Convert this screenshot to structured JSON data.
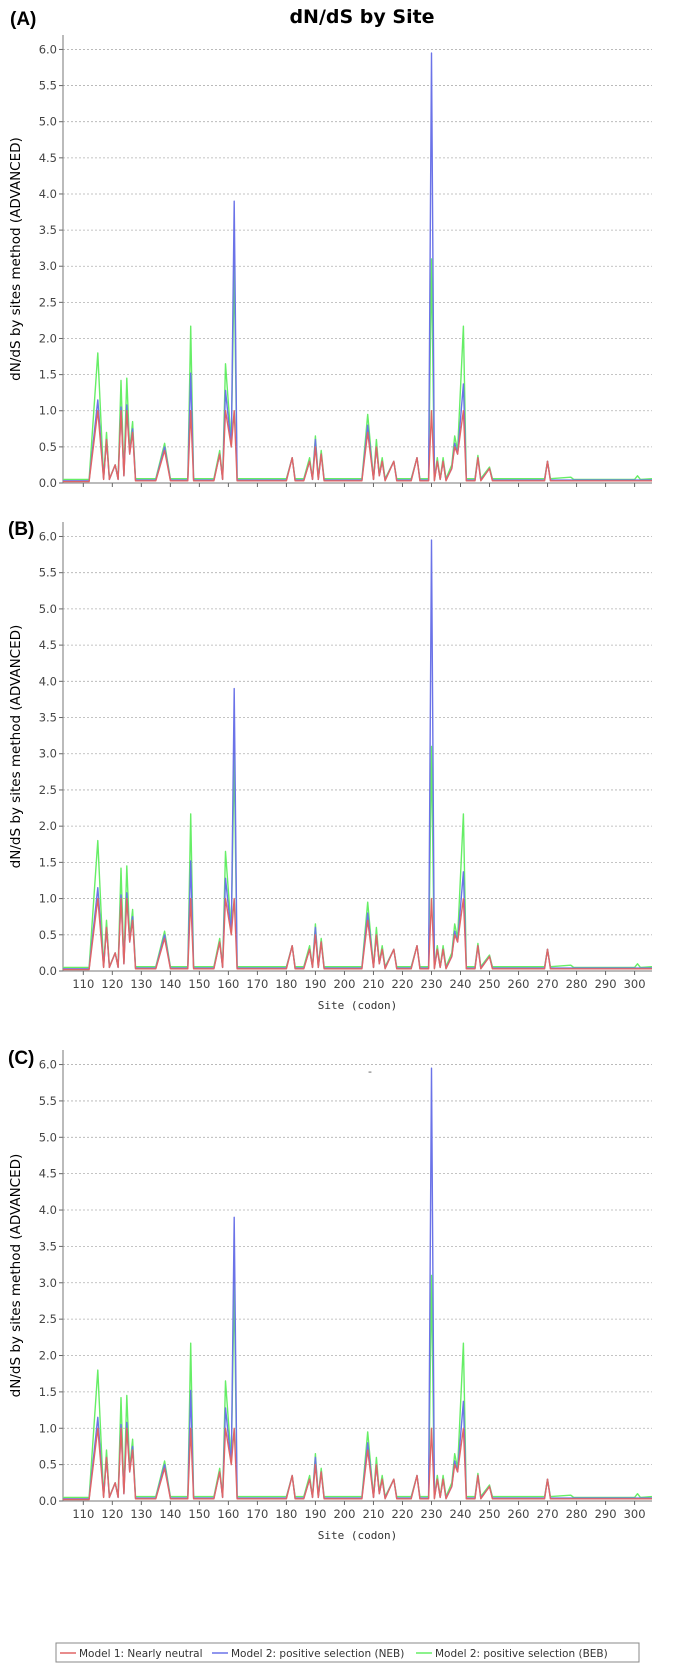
{
  "title": "dN/dS by Site",
  "dash_mark": "-",
  "legend": [
    {
      "label": "Model 1: Nearly neutral",
      "color": "#e06666"
    },
    {
      "label": "Model 2: positive selection (NEB)",
      "color": "#6b73e8"
    },
    {
      "label": "Model 2: positive selection (BEB)",
      "color": "#66ee66"
    }
  ],
  "chart_data": [
    {
      "type": "line",
      "panel_label": "(A)",
      "ylabel": "dN/dS by sites method (ADVANCED)",
      "xlabel": "",
      "show_x_tick_labels": false,
      "ylim": [
        0,
        6.2
      ],
      "xlim": [
        103,
        306
      ],
      "y_ticks": [
        "0.0",
        "0.5",
        "1.0",
        "1.5",
        "2.0",
        "2.5",
        "3.0",
        "3.5",
        "4.0",
        "4.5",
        "5.0",
        "5.5",
        "6.0"
      ],
      "x_ticks": [
        "110",
        "120",
        "130",
        "140",
        "150",
        "160",
        "170",
        "180",
        "190",
        "200",
        "210",
        "220",
        "230",
        "240",
        "250",
        "260",
        "270",
        "280",
        "290",
        "300"
      ],
      "grid": "horizontal-dashed",
      "series": [
        {
          "name": "Model 1: Nearly neutral",
          "color": "#e06666",
          "points": [
            [
              103,
              0.02
            ],
            [
              112,
              0.02
            ],
            [
              115,
              1.0
            ],
            [
              117,
              0.05
            ],
            [
              118,
              0.6
            ],
            [
              119,
              0.05
            ],
            [
              121,
              0.25
            ],
            [
              122,
              0.05
            ],
            [
              123,
              1.0
            ],
            [
              124,
              0.1
            ],
            [
              125,
              1.0
            ],
            [
              126,
              0.4
            ],
            [
              127,
              0.7
            ],
            [
              128,
              0.03
            ],
            [
              135,
              0.03
            ],
            [
              138,
              0.45
            ],
            [
              140,
              0.03
            ],
            [
              146,
              0.03
            ],
            [
              147,
              1.0
            ],
            [
              148,
              0.03
            ],
            [
              155,
              0.03
            ],
            [
              157,
              0.4
            ],
            [
              158,
              0.05
            ],
            [
              159,
              1.0
            ],
            [
              161,
              0.5
            ],
            [
              162,
              1.0
            ],
            [
              163,
              0.03
            ],
            [
              180,
              0.03
            ],
            [
              182,
              0.35
            ],
            [
              183,
              0.03
            ],
            [
              186,
              0.03
            ],
            [
              188,
              0.3
            ],
            [
              189,
              0.05
            ],
            [
              190,
              0.5
            ],
            [
              191,
              0.05
            ],
            [
              192,
              0.4
            ],
            [
              193,
              0.03
            ],
            [
              206,
              0.03
            ],
            [
              208,
              0.7
            ],
            [
              210,
              0.05
            ],
            [
              211,
              0.5
            ],
            [
              212,
              0.1
            ],
            [
              213,
              0.3
            ],
            [
              214,
              0.03
            ],
            [
              217,
              0.3
            ],
            [
              218,
              0.03
            ],
            [
              223,
              0.03
            ],
            [
              225,
              0.35
            ],
            [
              226,
              0.03
            ],
            [
              229,
              0.03
            ],
            [
              230,
              1.0
            ],
            [
              231,
              0.03
            ],
            [
              232,
              0.3
            ],
            [
              233,
              0.05
            ],
            [
              234,
              0.3
            ],
            [
              235,
              0.03
            ],
            [
              237,
              0.2
            ],
            [
              238,
              0.5
            ],
            [
              239,
              0.4
            ],
            [
              241,
              1.0
            ],
            [
              242,
              0.03
            ],
            [
              245,
              0.03
            ],
            [
              246,
              0.35
            ],
            [
              247,
              0.03
            ],
            [
              250,
              0.2
            ],
            [
              251,
              0.03
            ],
            [
              269,
              0.03
            ],
            [
              270,
              0.3
            ],
            [
              271,
              0.03
            ],
            [
              306,
              0.03
            ]
          ]
        },
        {
          "name": "Model 2: positive selection (NEB)",
          "color": "#6b73e8",
          "points": [
            [
              103,
              0.03
            ],
            [
              112,
              0.03
            ],
            [
              115,
              1.15
            ],
            [
              117,
              0.06
            ],
            [
              118,
              0.6
            ],
            [
              119,
              0.05
            ],
            [
              121,
              0.25
            ],
            [
              122,
              0.05
            ],
            [
              123,
              1.05
            ],
            [
              124,
              0.1
            ],
            [
              125,
              1.08
            ],
            [
              126,
              0.4
            ],
            [
              127,
              0.75
            ],
            [
              128,
              0.04
            ],
            [
              135,
              0.04
            ],
            [
              138,
              0.5
            ],
            [
              140,
              0.04
            ],
            [
              146,
              0.04
            ],
            [
              147,
              1.52
            ],
            [
              148,
              0.04
            ],
            [
              155,
              0.04
            ],
            [
              157,
              0.4
            ],
            [
              158,
              0.05
            ],
            [
              159,
              1.28
            ],
            [
              161,
              0.5
            ],
            [
              162,
              3.9
            ],
            [
              163,
              0.04
            ],
            [
              180,
              0.04
            ],
            [
              182,
              0.35
            ],
            [
              183,
              0.04
            ],
            [
              186,
              0.04
            ],
            [
              188,
              0.3
            ],
            [
              189,
              0.05
            ],
            [
              190,
              0.6
            ],
            [
              191,
              0.05
            ],
            [
              192,
              0.4
            ],
            [
              193,
              0.04
            ],
            [
              206,
              0.04
            ],
            [
              208,
              0.8
            ],
            [
              210,
              0.05
            ],
            [
              211,
              0.5
            ],
            [
              212,
              0.1
            ],
            [
              213,
              0.3
            ],
            [
              214,
              0.04
            ],
            [
              217,
              0.3
            ],
            [
              218,
              0.04
            ],
            [
              223,
              0.04
            ],
            [
              225,
              0.35
            ],
            [
              226,
              0.04
            ],
            [
              229,
              0.04
            ],
            [
              230,
              5.95
            ],
            [
              231,
              0.04
            ],
            [
              232,
              0.3
            ],
            [
              233,
              0.05
            ],
            [
              234,
              0.3
            ],
            [
              235,
              0.04
            ],
            [
              237,
              0.2
            ],
            [
              238,
              0.55
            ],
            [
              239,
              0.4
            ],
            [
              241,
              1.37
            ],
            [
              242,
              0.04
            ],
            [
              245,
              0.04
            ],
            [
              246,
              0.35
            ],
            [
              247,
              0.04
            ],
            [
              250,
              0.2
            ],
            [
              251,
              0.04
            ],
            [
              269,
              0.04
            ],
            [
              270,
              0.3
            ],
            [
              271,
              0.04
            ],
            [
              306,
              0.04
            ]
          ]
        },
        {
          "name": "Model 2: positive selection (BEB)",
          "color": "#66ee66",
          "points": [
            [
              103,
              0.05
            ],
            [
              112,
              0.05
            ],
            [
              115,
              1.8
            ],
            [
              117,
              0.07
            ],
            [
              118,
              0.7
            ],
            [
              119,
              0.06
            ],
            [
              121,
              0.25
            ],
            [
              122,
              0.06
            ],
            [
              123,
              1.42
            ],
            [
              124,
              0.12
            ],
            [
              125,
              1.45
            ],
            [
              126,
              0.45
            ],
            [
              127,
              0.85
            ],
            [
              128,
              0.06
            ],
            [
              135,
              0.06
            ],
            [
              138,
              0.55
            ],
            [
              140,
              0.06
            ],
            [
              146,
              0.06
            ],
            [
              147,
              2.17
            ],
            [
              148,
              0.06
            ],
            [
              155,
              0.06
            ],
            [
              157,
              0.45
            ],
            [
              158,
              0.06
            ],
            [
              159,
              1.65
            ],
            [
              161,
              0.55
            ],
            [
              162,
              3.0
            ],
            [
              163,
              0.06
            ],
            [
              180,
              0.06
            ],
            [
              182,
              0.35
            ],
            [
              183,
              0.06
            ],
            [
              186,
              0.06
            ],
            [
              188,
              0.35
            ],
            [
              189,
              0.06
            ],
            [
              190,
              0.65
            ],
            [
              191,
              0.06
            ],
            [
              192,
              0.45
            ],
            [
              193,
              0.06
            ],
            [
              206,
              0.06
            ],
            [
              208,
              0.95
            ],
            [
              210,
              0.06
            ],
            [
              211,
              0.6
            ],
            [
              212,
              0.12
            ],
            [
              213,
              0.35
            ],
            [
              214,
              0.06
            ],
            [
              217,
              0.3
            ],
            [
              218,
              0.06
            ],
            [
              223,
              0.06
            ],
            [
              225,
              0.35
            ],
            [
              226,
              0.06
            ],
            [
              229,
              0.06
            ],
            [
              230,
              3.1
            ],
            [
              231,
              0.06
            ],
            [
              232,
              0.35
            ],
            [
              233,
              0.06
            ],
            [
              234,
              0.35
            ],
            [
              235,
              0.06
            ],
            [
              237,
              0.25
            ],
            [
              238,
              0.65
            ],
            [
              239,
              0.45
            ],
            [
              241,
              2.17
            ],
            [
              242,
              0.06
            ],
            [
              245,
              0.06
            ],
            [
              246,
              0.38
            ],
            [
              247,
              0.06
            ],
            [
              250,
              0.22
            ],
            [
              251,
              0.06
            ],
            [
              269,
              0.06
            ],
            [
              270,
              0.3
            ],
            [
              271,
              0.06
            ],
            [
              278,
              0.08
            ],
            [
              279,
              0.05
            ],
            [
              300,
              0.05
            ],
            [
              301,
              0.1
            ],
            [
              302,
              0.05
            ],
            [
              306,
              0.06
            ]
          ]
        }
      ]
    },
    {
      "type": "line",
      "panel_label": "(B)",
      "ylabel": "dN/dS by sites method (ADVANCED)",
      "xlabel": "Site (codon)",
      "show_x_tick_labels": true,
      "ylim": [
        0,
        6.2
      ],
      "xlim": [
        103,
        306
      ],
      "y_ticks": [
        "0.0",
        "0.5",
        "1.0",
        "1.5",
        "2.0",
        "2.5",
        "3.0",
        "3.5",
        "4.0",
        "4.5",
        "5.0",
        "5.5",
        "6.0"
      ],
      "x_ticks": [
        "110",
        "120",
        "130",
        "140",
        "150",
        "160",
        "170",
        "180",
        "190",
        "200",
        "210",
        "220",
        "230",
        "240",
        "250",
        "260",
        "270",
        "280",
        "290",
        "300"
      ],
      "grid": "horizontal-dashed",
      "series_same_as_panel": 0
    },
    {
      "type": "line",
      "panel_label": "(C)",
      "ylabel": "dN/dS by sites method (ADVANCED)",
      "xlabel": "Site (codon)",
      "show_x_tick_labels": true,
      "ylim": [
        0,
        6.2
      ],
      "xlim": [
        103,
        306
      ],
      "y_ticks": [
        "0.0",
        "0.5",
        "1.0",
        "1.5",
        "2.0",
        "2.5",
        "3.0",
        "3.5",
        "4.0",
        "4.5",
        "5.0",
        "5.5",
        "6.0"
      ],
      "x_ticks": [
        "110",
        "120",
        "130",
        "140",
        "150",
        "160",
        "170",
        "180",
        "190",
        "200",
        "210",
        "220",
        "230",
        "240",
        "250",
        "260",
        "270",
        "280",
        "290",
        "300"
      ],
      "grid": "horizontal-dashed",
      "series_same_as_panel": 0
    }
  ]
}
